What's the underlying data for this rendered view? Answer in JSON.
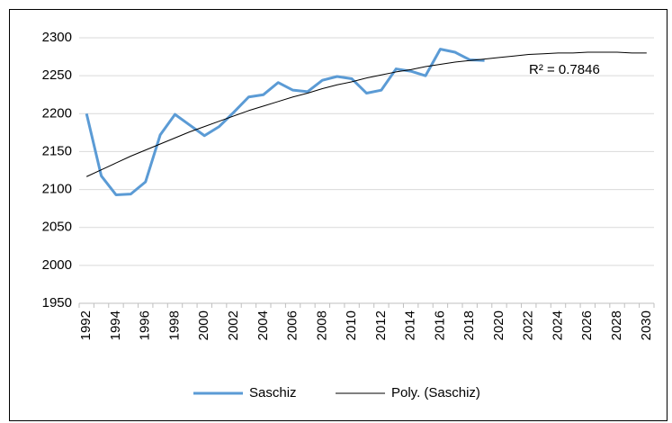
{
  "chart_data": {
    "type": "line",
    "categories": [
      "1992",
      null,
      "1994",
      null,
      "1996",
      null,
      "1998",
      null,
      "2000",
      null,
      "2002",
      null,
      "2004",
      null,
      "2006",
      null,
      "2008",
      null,
      "2010",
      null,
      "2012",
      null,
      "2014",
      null,
      "2016",
      null,
      "2018",
      null,
      "2020",
      null,
      "2022",
      null,
      "2024",
      null,
      "2026",
      null,
      "2028",
      null,
      "2030"
    ],
    "series": [
      {
        "name": "Saschiz",
        "color": "#5b9bd5",
        "values": [
          2200,
          2118,
          2093,
          2094,
          2110,
          2172,
          2199,
          2185,
          2171,
          2183,
          2202,
          2222,
          2225,
          2241,
          2231,
          2229,
          2244,
          2249,
          2246,
          2227,
          2231,
          2259,
          2256,
          2250,
          2285,
          2281,
          2271,
          2270,
          null,
          null,
          null,
          null,
          null,
          null,
          null,
          null,
          null,
          null,
          null
        ]
      },
      {
        "name": "Poly. (Saschiz)",
        "color": "#000000",
        "values": [
          2117,
          2126,
          2135,
          2144,
          2152,
          2160,
          2168,
          2176,
          2183,
          2190,
          2197,
          2204,
          2210,
          2216,
          2222,
          2227,
          2233,
          2238,
          2242,
          2247,
          2251,
          2255,
          2258,
          2262,
          2265,
          2268,
          2270,
          2272,
          2274,
          2276,
          2278,
          2279,
          2280,
          2280,
          2281,
          2281,
          2281,
          2280,
          2280
        ]
      }
    ],
    "annotation": "R² = 0.7846",
    "ylim": [
      1950,
      2300
    ],
    "yticks": [
      1950,
      2000,
      2050,
      2100,
      2150,
      2200,
      2250,
      2300
    ],
    "grid": true,
    "legend": "bottom"
  }
}
